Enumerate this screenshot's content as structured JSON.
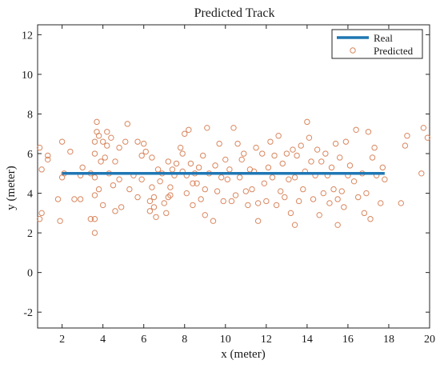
{
  "chart_data": {
    "type": "scatter",
    "title": "Predicted Track",
    "xlabel": "x (meter)",
    "ylabel": "y (meter)",
    "xlim": [
      0.8,
      20
    ],
    "ylim": [
      -2.8,
      12.5
    ],
    "xticks": [
      2,
      4,
      6,
      8,
      10,
      12,
      14,
      16,
      18,
      20
    ],
    "yticks": [
      -2,
      0,
      2,
      4,
      6,
      8,
      10,
      12
    ],
    "grid": false,
    "legend_position": "top-right",
    "colors": {
      "real": "#1f77b4",
      "predicted": "#d9875f"
    },
    "series": [
      {
        "name": "Real",
        "kind": "line",
        "x": [
          2.0,
          17.8
        ],
        "y": [
          5.0,
          5.0
        ]
      },
      {
        "name": "Predicted",
        "kind": "scatter",
        "points": [
          [
            0.9,
            2.7
          ],
          [
            0.9,
            6.3
          ],
          [
            1.0,
            5.2
          ],
          [
            1.0,
            3.0
          ],
          [
            1.3,
            5.9
          ],
          [
            1.3,
            5.7
          ],
          [
            1.8,
            3.7
          ],
          [
            1.9,
            2.6
          ],
          [
            2.0,
            4.8
          ],
          [
            2.0,
            6.6
          ],
          [
            2.1,
            5.0
          ],
          [
            2.4,
            6.1
          ],
          [
            2.6,
            3.7
          ],
          [
            2.9,
            3.7
          ],
          [
            2.9,
            4.9
          ],
          [
            3.0,
            5.3
          ],
          [
            3.4,
            5.0
          ],
          [
            3.4,
            2.7
          ],
          [
            3.6,
            2.7
          ],
          [
            3.6,
            2.0
          ],
          [
            3.6,
            3.9
          ],
          [
            3.6,
            4.8
          ],
          [
            3.6,
            6.0
          ],
          [
            3.6,
            6.6
          ],
          [
            3.7,
            7.1
          ],
          [
            3.7,
            7.6
          ],
          [
            3.8,
            6.9
          ],
          [
            3.8,
            4.2
          ],
          [
            3.9,
            5.6
          ],
          [
            4.0,
            6.6
          ],
          [
            4.0,
            3.4
          ],
          [
            4.1,
            5.8
          ],
          [
            4.2,
            7.1
          ],
          [
            4.2,
            6.4
          ],
          [
            4.3,
            5.0
          ],
          [
            4.4,
            6.8
          ],
          [
            4.5,
            4.4
          ],
          [
            4.6,
            5.6
          ],
          [
            4.6,
            3.1
          ],
          [
            4.8,
            6.3
          ],
          [
            4.8,
            4.7
          ],
          [
            4.9,
            3.3
          ],
          [
            5.1,
            6.6
          ],
          [
            5.2,
            7.5
          ],
          [
            5.3,
            4.2
          ],
          [
            5.5,
            4.9
          ],
          [
            5.7,
            3.8
          ],
          [
            5.7,
            6.6
          ],
          [
            5.9,
            5.9
          ],
          [
            5.9,
            4.7
          ],
          [
            6.0,
            6.5
          ],
          [
            6.1,
            6.1
          ],
          [
            6.3,
            3.6
          ],
          [
            6.3,
            3.1
          ],
          [
            6.4,
            4.3
          ],
          [
            6.4,
            5.8
          ],
          [
            6.5,
            3.8
          ],
          [
            6.5,
            3.3
          ],
          [
            6.6,
            2.8
          ],
          [
            6.7,
            5.2
          ],
          [
            6.8,
            4.6
          ],
          [
            6.9,
            5.0
          ],
          [
            7.0,
            3.5
          ],
          [
            7.1,
            3.0
          ],
          [
            7.2,
            3.8
          ],
          [
            7.2,
            5.6
          ],
          [
            7.3,
            4.3
          ],
          [
            7.3,
            3.9
          ],
          [
            7.4,
            5.2
          ],
          [
            7.5,
            4.9
          ],
          [
            7.6,
            5.5
          ],
          [
            7.8,
            6.3
          ],
          [
            7.9,
            5.1
          ],
          [
            7.9,
            6.0
          ],
          [
            8.0,
            7.0
          ],
          [
            8.1,
            4.0
          ],
          [
            8.1,
            4.9
          ],
          [
            8.2,
            7.2
          ],
          [
            8.3,
            5.5
          ],
          [
            8.4,
            4.5
          ],
          [
            8.4,
            3.4
          ],
          [
            8.5,
            5.0
          ],
          [
            8.6,
            4.5
          ],
          [
            8.7,
            5.3
          ],
          [
            8.8,
            3.7
          ],
          [
            8.9,
            5.9
          ],
          [
            9.0,
            4.2
          ],
          [
            9.0,
            2.9
          ],
          [
            9.1,
            7.3
          ],
          [
            9.2,
            5.0
          ],
          [
            9.4,
            2.6
          ],
          [
            9.5,
            5.4
          ],
          [
            9.6,
            4.1
          ],
          [
            9.7,
            6.5
          ],
          [
            9.8,
            4.8
          ],
          [
            9.9,
            3.6
          ],
          [
            10.0,
            5.7
          ],
          [
            10.1,
            4.7
          ],
          [
            10.2,
            5.2
          ],
          [
            10.3,
            3.6
          ],
          [
            10.4,
            7.3
          ],
          [
            10.5,
            3.9
          ],
          [
            10.6,
            6.5
          ],
          [
            10.7,
            4.8
          ],
          [
            10.8,
            5.7
          ],
          [
            10.9,
            6.0
          ],
          [
            11.0,
            4.1
          ],
          [
            11.1,
            3.4
          ],
          [
            11.2,
            5.2
          ],
          [
            11.3,
            4.2
          ],
          [
            11.4,
            5.1
          ],
          [
            11.5,
            6.3
          ],
          [
            11.6,
            3.5
          ],
          [
            11.6,
            2.6
          ],
          [
            11.8,
            6.0
          ],
          [
            11.9,
            4.5
          ],
          [
            12.0,
            3.6
          ],
          [
            12.1,
            5.3
          ],
          [
            12.2,
            6.6
          ],
          [
            12.3,
            4.8
          ],
          [
            12.4,
            5.9
          ],
          [
            12.5,
            3.4
          ],
          [
            12.6,
            6.9
          ],
          [
            12.7,
            4.1
          ],
          [
            12.8,
            5.5
          ],
          [
            12.9,
            3.8
          ],
          [
            13.0,
            6.0
          ],
          [
            13.1,
            4.7
          ],
          [
            13.2,
            3.0
          ],
          [
            13.3,
            6.2
          ],
          [
            13.4,
            2.4
          ],
          [
            13.4,
            4.8
          ],
          [
            13.5,
            5.9
          ],
          [
            13.6,
            3.6
          ],
          [
            13.7,
            6.4
          ],
          [
            13.8,
            4.2
          ],
          [
            13.9,
            5.1
          ],
          [
            14.0,
            7.6
          ],
          [
            14.1,
            6.8
          ],
          [
            14.2,
            5.6
          ],
          [
            14.3,
            3.7
          ],
          [
            14.4,
            4.9
          ],
          [
            14.5,
            6.2
          ],
          [
            14.6,
            2.9
          ],
          [
            14.7,
            5.6
          ],
          [
            14.8,
            4.0
          ],
          [
            14.9,
            6.0
          ],
          [
            15.0,
            4.9
          ],
          [
            15.1,
            3.5
          ],
          [
            15.2,
            5.3
          ],
          [
            15.3,
            4.2
          ],
          [
            15.4,
            6.5
          ],
          [
            15.5,
            3.7
          ],
          [
            15.5,
            2.4
          ],
          [
            15.6,
            5.8
          ],
          [
            15.7,
            4.1
          ],
          [
            15.8,
            3.3
          ],
          [
            15.9,
            6.6
          ],
          [
            16.0,
            4.9
          ],
          [
            16.1,
            5.4
          ],
          [
            16.3,
            4.6
          ],
          [
            16.4,
            7.2
          ],
          [
            16.5,
            3.8
          ],
          [
            16.7,
            5.0
          ],
          [
            16.8,
            3.0
          ],
          [
            16.9,
            4.0
          ],
          [
            17.0,
            7.1
          ],
          [
            17.1,
            2.7
          ],
          [
            17.2,
            5.8
          ],
          [
            17.3,
            6.3
          ],
          [
            17.4,
            4.9
          ],
          [
            17.6,
            3.5
          ],
          [
            17.7,
            5.3
          ],
          [
            17.8,
            4.7
          ],
          [
            18.6,
            3.5
          ],
          [
            18.8,
            6.4
          ],
          [
            18.9,
            6.9
          ],
          [
            19.6,
            5.0
          ],
          [
            19.7,
            7.3
          ],
          [
            19.9,
            6.8
          ]
        ]
      }
    ]
  }
}
